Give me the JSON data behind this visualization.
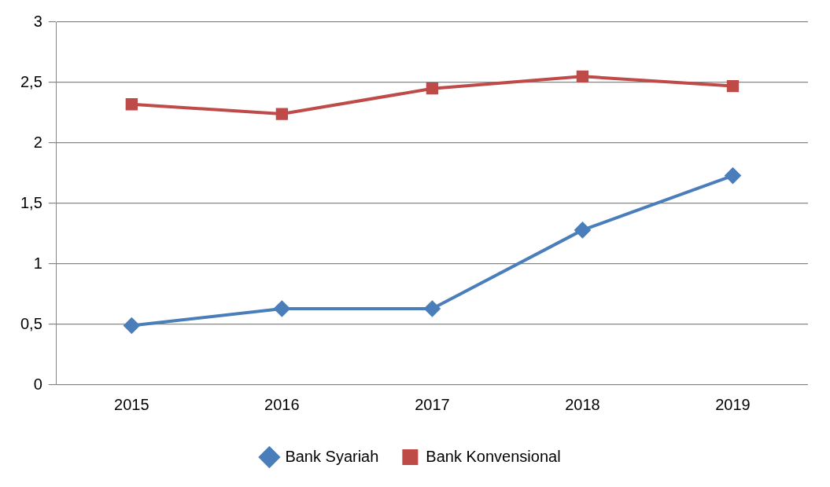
{
  "chart_data": {
    "type": "line",
    "categories": [
      "2015",
      "2016",
      "2017",
      "2018",
      "2019"
    ],
    "series": [
      {
        "name": "Bank Syariah",
        "color": "#4a7ebb",
        "marker": "diamond",
        "values": [
          0.49,
          0.63,
          0.63,
          1.28,
          1.73
        ]
      },
      {
        "name": "Bank Konvensional",
        "color": "#be4b48",
        "marker": "square",
        "values": [
          2.32,
          2.24,
          2.45,
          2.55,
          2.47
        ]
      }
    ],
    "ylim": [
      0,
      3
    ],
    "yticks": [
      {
        "value": 0,
        "label": "0"
      },
      {
        "value": 0.5,
        "label": "0,5"
      },
      {
        "value": 1,
        "label": "1"
      },
      {
        "value": 1.5,
        "label": "1,5"
      },
      {
        "value": 2,
        "label": "2"
      },
      {
        "value": 2.5,
        "label": "2,5"
      },
      {
        "value": 3,
        "label": "3"
      }
    ],
    "grid": "y",
    "legend": "bottom",
    "line_style": "solid"
  }
}
